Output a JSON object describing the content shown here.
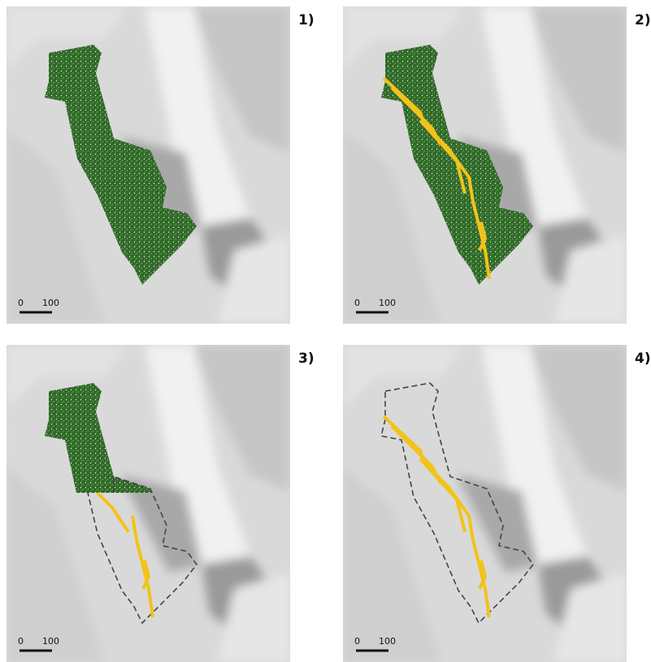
{
  "panels": [
    {
      "label": "1)",
      "scale_bar": {
        "start": "0",
        "end": "100"
      }
    },
    {
      "label": "2)",
      "scale_bar": {
        "start": "0",
        "end": "100"
      }
    },
    {
      "label": "3)",
      "scale_bar": {
        "start": "0",
        "end": "100"
      }
    },
    {
      "label": "4)",
      "scale_bar": {
        "start": "0",
        "end": "100"
      }
    }
  ]
}
